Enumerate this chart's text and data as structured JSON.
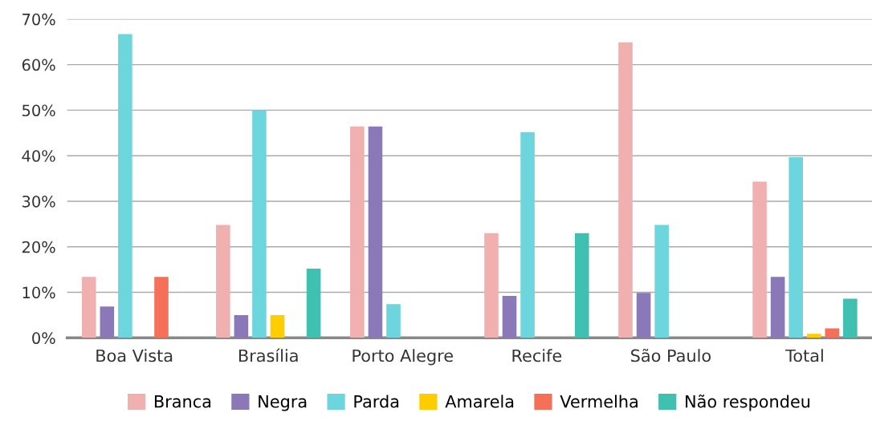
{
  "chart_data": {
    "type": "bar",
    "categories": [
      "Boa Vista",
      "Brasília",
      "Porto Alegre",
      "Recife",
      "São Paulo",
      "Total"
    ],
    "series": [
      {
        "name": "Branca",
        "color": "#f0b0b0",
        "values": [
          13.4,
          24.8,
          46.4,
          23.0,
          64.9,
          34.3
        ]
      },
      {
        "name": "Negra",
        "color": "#8a78b8",
        "values": [
          6.9,
          5.0,
          46.4,
          9.2,
          9.9,
          13.4
        ]
      },
      {
        "name": "Parda",
        "color": "#6dd5dd",
        "values": [
          66.7,
          50.0,
          7.4,
          45.2,
          24.8,
          39.7
        ]
      },
      {
        "name": "Amarela",
        "color": "#ffcc00",
        "values": [
          0,
          5.0,
          0,
          0,
          0,
          0.9
        ]
      },
      {
        "name": "Vermelha",
        "color": "#f57058",
        "values": [
          13.4,
          0,
          0,
          0,
          0,
          2.1
        ]
      },
      {
        "name": "Não respondeu",
        "color": "#40c0b0",
        "values": [
          0,
          15.2,
          0,
          23.0,
          0,
          8.6
        ]
      }
    ],
    "ylim": [
      0,
      70
    ],
    "yticks": [
      {
        "value": 0,
        "label": "0%"
      },
      {
        "value": 10,
        "label": "10%"
      },
      {
        "value": 20,
        "label": "20%"
      },
      {
        "value": 30,
        "label": "30%"
      },
      {
        "value": 40,
        "label": "40%"
      },
      {
        "value": 50,
        "label": "50%"
      },
      {
        "value": 60,
        "label": "60%"
      },
      {
        "value": 70,
        "label": "70%"
      }
    ],
    "grid": "y",
    "legend": "bottom"
  }
}
